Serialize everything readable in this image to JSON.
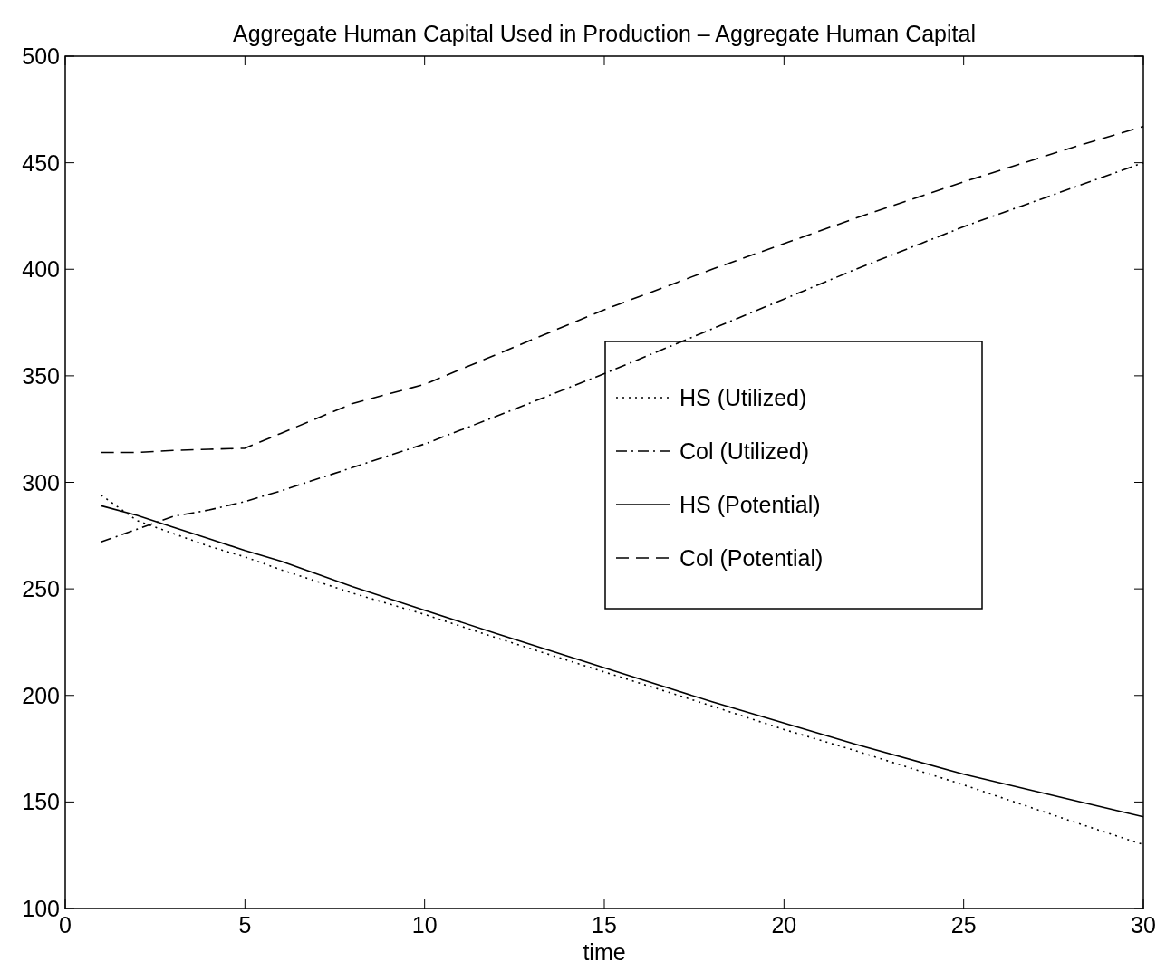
{
  "chart_data": {
    "type": "line",
    "title": "Aggregate Human Capital Used in Production – Aggregate Human Capital",
    "xlabel": "time",
    "xlim": [
      0,
      30
    ],
    "xticks": [
      0,
      5,
      10,
      15,
      20,
      25,
      30
    ],
    "ylim": [
      100,
      500
    ],
    "yticks": [
      100,
      150,
      200,
      250,
      300,
      350,
      400,
      450,
      500
    ],
    "grid": false,
    "legend": "right",
    "marker": "none",
    "series": [
      {
        "name": "HS (Utilized)",
        "color": "#000000",
        "line_style": "dotted",
        "x": [
          1,
          2,
          3,
          4,
          5,
          6,
          8,
          10,
          12,
          15,
          18,
          20,
          22,
          25,
          28,
          30
        ],
        "values": [
          294,
          282,
          276,
          270,
          265,
          259,
          248,
          238,
          227,
          211,
          195,
          184,
          174,
          158,
          141,
          130
        ]
      },
      {
        "name": "Col (Utilized)",
        "color": "#000000",
        "line_style": "dashdot",
        "x": [
          1,
          2,
          3,
          4,
          5,
          6,
          8,
          10,
          12,
          15,
          18,
          20,
          22,
          25,
          28,
          30
        ],
        "values": [
          272,
          278,
          284,
          287,
          291,
          296,
          307,
          318,
          331,
          351,
          372,
          386,
          400,
          420,
          438,
          450
        ]
      },
      {
        "name": "HS (Potential)",
        "color": "#000000",
        "line_style": "solid",
        "x": [
          1,
          2,
          3,
          4,
          5,
          6,
          8,
          10,
          12,
          15,
          18,
          20,
          22,
          25,
          28,
          30
        ],
        "values": [
          289,
          284.5,
          279,
          273.5,
          268,
          263,
          251,
          240,
          229,
          213,
          197,
          187,
          177,
          163,
          151,
          143
        ]
      },
      {
        "name": "Col (Potential)",
        "color": "#000000",
        "line_style": "dashed",
        "x": [
          1,
          2,
          3,
          4,
          5,
          6,
          8,
          10,
          12,
          15,
          18,
          20,
          22,
          25,
          28,
          30
        ],
        "values": [
          314,
          314,
          315,
          315.5,
          316,
          323,
          337,
          346,
          360,
          381,
          400,
          412,
          424,
          441,
          457,
          467
        ]
      }
    ]
  }
}
